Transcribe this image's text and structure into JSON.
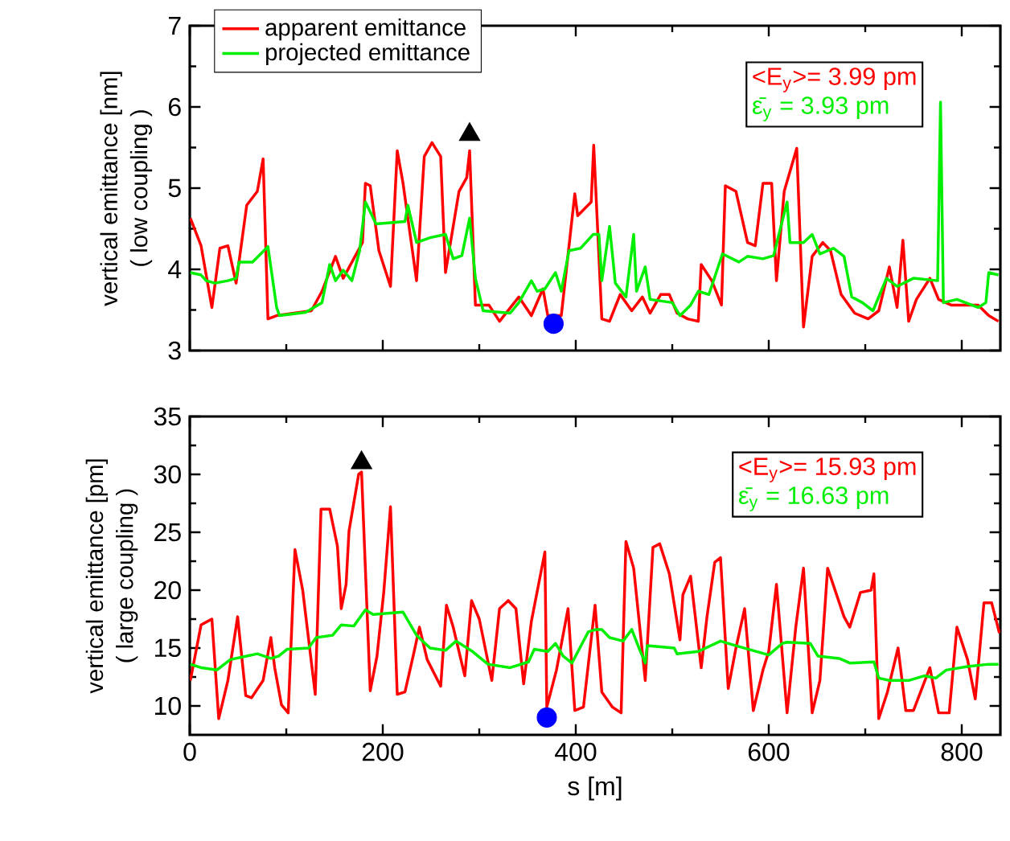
{
  "chart_data": [
    {
      "type": "line",
      "ylabel": [
        "vertical emittance [nm]",
        "( low coupling )"
      ],
      "xlim": [
        0,
        840
      ],
      "ylim": [
        3,
        7
      ],
      "xticks": [
        0,
        200,
        400,
        600,
        800
      ],
      "yticks": [
        3,
        4,
        5,
        6,
        7
      ],
      "tick_labels": "y",
      "legend": "top left",
      "annotations": [
        "<E$_{y}$>= 3.99 pm",
        "ε̄$_{y}$  = 3.93 pm"
      ],
      "series": [
        {
          "name": "apparent emittance",
          "color": "#ff0000",
          "x": [
            0.6,
            11.7,
            22.9,
            31.2,
            39.5,
            48,
            59,
            70,
            76,
            81,
            90,
            126,
            137,
            151,
            159,
            179,
            182,
            187,
            196,
            208,
            215,
            221,
            235,
            243,
            251,
            260,
            265,
            279,
            287,
            290,
            296,
            310,
            321,
            341,
            354,
            366,
            371,
            385,
            399,
            402,
            416,
            418.6,
            427,
            435,
            446,
            458,
            469,
            477,
            488,
            497,
            505,
            516,
            527,
            530,
            541,
            551,
            555,
            566,
            578,
            586,
            594,
            603,
            608,
            616,
            629,
            636,
            645,
            656,
            664,
            675,
            689,
            703,
            714,
            725,
            733,
            739,
            745,
            753,
            767,
            776,
            789,
            803,
            817,
            828,
            838
          ],
          "values": [
            4.63,
            4.29,
            3.53,
            4.26,
            4.29,
            3.83,
            4.79,
            4.96,
            5.36,
            3.39,
            3.43,
            3.49,
            3.73,
            4.16,
            3.89,
            4.33,
            5.06,
            5.03,
            4.23,
            3.79,
            5.46,
            5.06,
            3.86,
            5.39,
            5.56,
            5.39,
            3.96,
            4.96,
            5.13,
            5.46,
            3.56,
            3.56,
            3.36,
            3.66,
            3.43,
            3.76,
            3.43,
            3.43,
            4.93,
            4.66,
            4.83,
            5.53,
            3.39,
            3.36,
            3.69,
            3.49,
            3.66,
            3.46,
            3.69,
            3.69,
            3.46,
            3.39,
            3.36,
            4.06,
            3.86,
            3.56,
            5.03,
            4.96,
            4.33,
            4.29,
            5.06,
            5.06,
            3.86,
            4.96,
            5.49,
            3.29,
            4.16,
            4.33,
            4.23,
            3.69,
            3.46,
            3.39,
            3.49,
            4.03,
            3.53,
            4.36,
            3.36,
            3.63,
            3.89,
            3.63,
            3.56,
            3.56,
            3.56,
            3.43,
            3.36
          ]
        },
        {
          "name": "projected emittance",
          "color": "#00ee00",
          "x": [
            0.6,
            11.7,
            17,
            26,
            39.5,
            48,
            51,
            65,
            81,
            90,
            93,
            120,
            137,
            145,
            151,
            159,
            168,
            176,
            182,
            193,
            223,
            226,
            235,
            249,
            265,
            273,
            282,
            290,
            296,
            304,
            332,
            341,
            354,
            360,
            368,
            379,
            385,
            393,
            405,
            418,
            424,
            427,
            435,
            441,
            452,
            460,
            463,
            472,
            477,
            500,
            508,
            519,
            527,
            538,
            552,
            569,
            578,
            594,
            605,
            619,
            622,
            636,
            645,
            653,
            667,
            678,
            686,
            697,
            708,
            722,
            733,
            750,
            775,
            778,
            781,
            795,
            817,
            825,
            828,
            838
          ],
          "values": [
            3.96,
            3.93,
            3.86,
            3.83,
            3.86,
            3.89,
            4.09,
            4.09,
            4.28,
            3.53,
            3.43,
            3.47,
            3.59,
            4.06,
            3.86,
            3.99,
            3.86,
            4.23,
            4.83,
            4.56,
            4.59,
            4.79,
            4.33,
            4.39,
            4.43,
            4.13,
            4.17,
            4.63,
            3.89,
            3.49,
            3.46,
            3.59,
            3.86,
            3.73,
            3.76,
            3.96,
            3.73,
            4.23,
            4.26,
            4.43,
            4.43,
            3.86,
            4.53,
            3.83,
            3.66,
            4.43,
            3.73,
            4.03,
            3.63,
            3.59,
            3.43,
            3.56,
            3.73,
            3.69,
            4.19,
            4.09,
            4.16,
            4.13,
            4.17,
            4.83,
            4.33,
            4.33,
            4.43,
            4.19,
            4.26,
            4.16,
            3.66,
            3.59,
            3.49,
            3.89,
            3.79,
            3.89,
            3.86,
            6.06,
            3.59,
            3.63,
            3.53,
            3.59,
            3.96,
            3.93
          ]
        },
        {
          "type": "scatter",
          "marker": "triangle",
          "color": "#000000",
          "x": [
            290
          ],
          "values": [
            5.66
          ]
        },
        {
          "type": "scatter",
          "marker": "circle",
          "color": "#0000ff",
          "x": [
            377
          ],
          "values": [
            3.33
          ]
        }
      ]
    },
    {
      "type": "line",
      "ylabel": [
        "vertical emittance [pm]",
        "( large coupling )"
      ],
      "xlabel": "s [m]",
      "xlim": [
        0,
        840
      ],
      "ylim": [
        7.5,
        35
      ],
      "xticks": [
        0,
        200,
        400,
        600,
        800
      ],
      "yticks": [
        10,
        15,
        20,
        25,
        30,
        35
      ],
      "annotations": [
        "<E$_{y}$>= 15.93 pm",
        "ε̄$_{y}$  = 16.63 pm"
      ],
      "series": [
        {
          "color": "#ff0000",
          "x": [
            0.6,
            11.7,
            22.9,
            30,
            39.5,
            49.6,
            58,
            64,
            76,
            84,
            88,
            95,
            102,
            109,
            117,
            130,
            136,
            145,
            153,
            157,
            162,
            165,
            175,
            178,
            187,
            194,
            201,
            208,
            215,
            223,
            232,
            238,
            246,
            260,
            266,
            273,
            285,
            292,
            300,
            313,
            321,
            330,
            338,
            346,
            354,
            368,
            370,
            380,
            392,
            399,
            408,
            420,
            427,
            438,
            447,
            452,
            460,
            472,
            480,
            487,
            497,
            508,
            511,
            519,
            530,
            536,
            544,
            550,
            558,
            566,
            575,
            584,
            594,
            600,
            608,
            619,
            628,
            636,
            645,
            653,
            661,
            678,
            684,
            695,
            706,
            709,
            714,
            723,
            734,
            742,
            750,
            767,
            776,
            787,
            795,
            806,
            814,
            823,
            831,
            839
          ],
          "values": [
            12.2,
            17.0,
            17.5,
            8.9,
            12.2,
            17.7,
            10.9,
            10.7,
            12.2,
            15.9,
            13.3,
            10.1,
            9.4,
            23.5,
            20.0,
            11.0,
            27.0,
            27.0,
            23.8,
            18.4,
            20.5,
            25.1,
            30.0,
            30.2,
            11.3,
            14.3,
            19.8,
            27.2,
            11.0,
            11.2,
            14.5,
            16.8,
            14.0,
            11.7,
            18.7,
            16.8,
            12.6,
            19.1,
            17.5,
            12.2,
            18.4,
            19.1,
            18.4,
            11.9,
            17.3,
            23.3,
            9.9,
            13.1,
            18.4,
            9.6,
            9.9,
            18.7,
            11.2,
            9.9,
            9.4,
            24.2,
            21.9,
            12.2,
            23.7,
            24.0,
            21.4,
            15.7,
            19.6,
            21.2,
            13.3,
            17.7,
            22.4,
            22.8,
            11.5,
            15.0,
            18.4,
            9.6,
            13.1,
            14.7,
            20.5,
            9.4,
            16.8,
            21.9,
            9.4,
            12.2,
            21.9,
            17.7,
            16.8,
            19.8,
            20.0,
            21.4,
            8.9,
            11.2,
            15.0,
            9.6,
            9.6,
            13.3,
            9.4,
            9.4,
            16.8,
            14.0,
            10.6,
            18.9,
            18.9,
            16.3
          ]
        },
        {
          "color": "#00ee00",
          "x": [
            0.6,
            11.7,
            28,
            42,
            59,
            70,
            84,
            92,
            101,
            123,
            131,
            148,
            157,
            170,
            182,
            190,
            221,
            235,
            249,
            265,
            276,
            293,
            309,
            332,
            351,
            357,
            371,
            379,
            387,
            396,
            413,
            421,
            427,
            435,
            449,
            458,
            466,
            472,
            474,
            502,
            505,
            527,
            550,
            566,
            600,
            614,
            619,
            643,
            651,
            673,
            684,
            709,
            714,
            725,
            745,
            761,
            773,
            784,
            806,
            828,
            838
          ],
          "values": [
            13.6,
            13.3,
            13.1,
            14.0,
            14.3,
            14.5,
            14.1,
            14.3,
            14.9,
            15.0,
            15.9,
            16.1,
            17.0,
            16.9,
            18.3,
            17.9,
            18.1,
            16.1,
            15.0,
            14.8,
            15.6,
            14.7,
            13.6,
            13.3,
            13.8,
            14.9,
            14.7,
            15.4,
            14.3,
            13.7,
            16.4,
            16.6,
            16.6,
            15.9,
            15.6,
            16.6,
            14.9,
            13.7,
            15.2,
            15.0,
            14.5,
            14.7,
            15.6,
            15.2,
            14.4,
            15.4,
            15.5,
            15.4,
            14.3,
            14.1,
            13.7,
            13.8,
            12.4,
            12.2,
            12.2,
            12.6,
            12.4,
            13.1,
            13.4,
            13.6,
            13.6
          ]
        },
        {
          "type": "scatter",
          "marker": "triangle",
          "color": "#000000",
          "x": [
            178
          ],
          "values": [
            31.0
          ]
        },
        {
          "type": "scatter",
          "marker": "circle",
          "color": "#0000ff",
          "x": [
            370
          ],
          "values": [
            9.0
          ]
        }
      ]
    }
  ]
}
